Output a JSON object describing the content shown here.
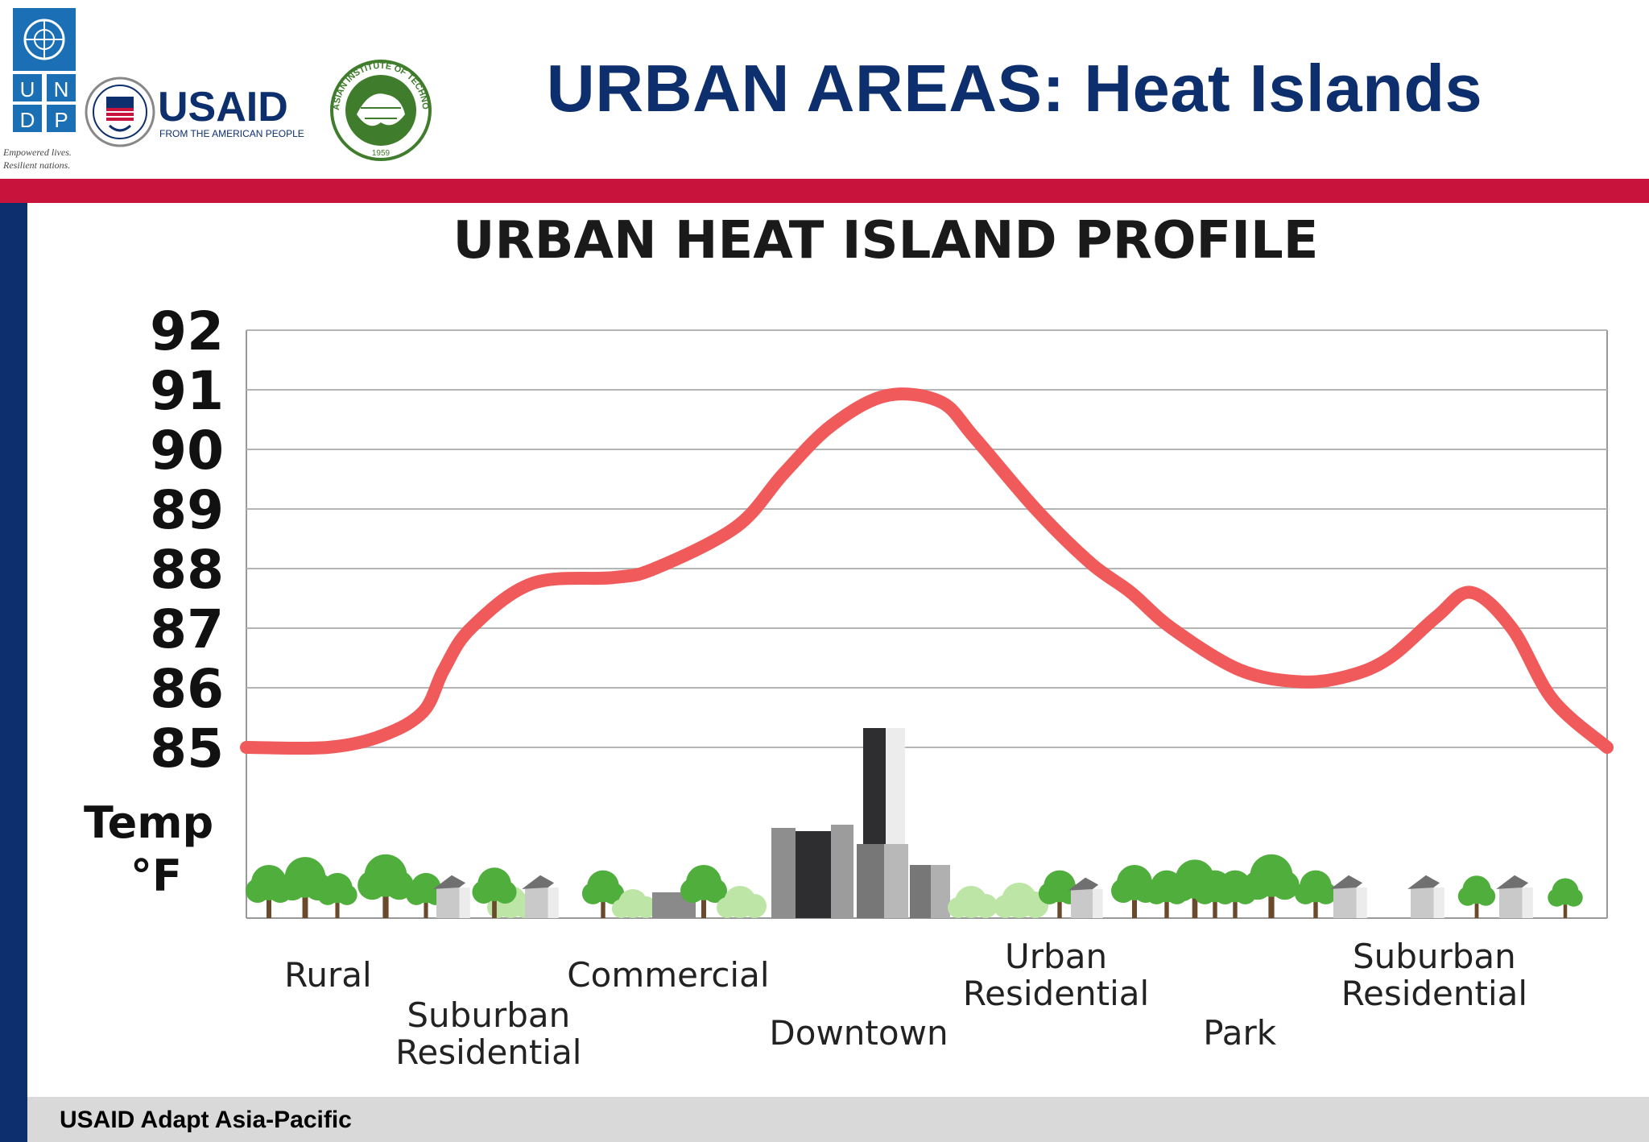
{
  "slide": {
    "title": "URBAN AREAS: Heat Islands",
    "footer": "USAID Adapt Asia-Pacific"
  },
  "logos": {
    "undp": {
      "letters": [
        "U",
        "N",
        "D",
        "P"
      ],
      "tagline": [
        "Empowered lives.",
        "Resilient nations."
      ]
    },
    "usaid": {
      "name": "USAID",
      "tagline": "FROM THE AMERICAN PEOPLE"
    },
    "ait": {
      "ring_text": "ASIAN INSTITUTE OF TECHNOLOGY",
      "year": "1959"
    }
  },
  "colors": {
    "title_blue": "#0d2f6e",
    "band_red": "#c8143c",
    "curve_red": "#f05a5a",
    "tree_green": "#4fae3c",
    "bush_green": "#bde6a6"
  },
  "chart_data": {
    "type": "line",
    "title": "URBAN HEAT ISLAND PROFILE",
    "ylabel": [
      "Temp",
      "°F"
    ],
    "ylim": [
      85,
      92
    ],
    "yticks": [
      85,
      86,
      87,
      88,
      89,
      90,
      91,
      92
    ],
    "grid": true,
    "zone_labels": [
      {
        "lines": [
          "Rural"
        ],
        "x": 0.06,
        "row": "upper"
      },
      {
        "lines": [
          "Suburban",
          "Residential"
        ],
        "x": 0.178,
        "row": "lower"
      },
      {
        "lines": [
          "Commercial"
        ],
        "x": 0.31,
        "row": "upper"
      },
      {
        "lines": [
          "Downtown"
        ],
        "x": 0.45,
        "row": "lower"
      },
      {
        "lines": [
          "Urban",
          "Residential"
        ],
        "x": 0.595,
        "row": "upper"
      },
      {
        "lines": [
          "Park"
        ],
        "x": 0.73,
        "row": "lower"
      },
      {
        "lines": [
          "Suburban",
          "Residential"
        ],
        "x": 0.873,
        "row": "upper"
      }
    ],
    "series": [
      {
        "color": "#f05a5a",
        "x": [
          0.0,
          0.06,
          0.1,
          0.13,
          0.145,
          0.165,
          0.21,
          0.27,
          0.3,
          0.36,
          0.395,
          0.43,
          0.47,
          0.51,
          0.535,
          0.58,
          0.62,
          0.65,
          0.68,
          0.73,
          0.775,
          0.81,
          0.84,
          0.875,
          0.9,
          0.93,
          0.96,
          1.0
        ],
        "values": [
          85.0,
          85.0,
          85.2,
          85.6,
          86.3,
          87.0,
          87.75,
          87.85,
          88.0,
          88.7,
          89.6,
          90.4,
          90.9,
          90.8,
          90.2,
          89.0,
          88.1,
          87.6,
          87.0,
          86.3,
          86.1,
          86.2,
          86.5,
          87.2,
          87.6,
          87.0,
          85.8,
          85.0
        ]
      }
    ]
  }
}
